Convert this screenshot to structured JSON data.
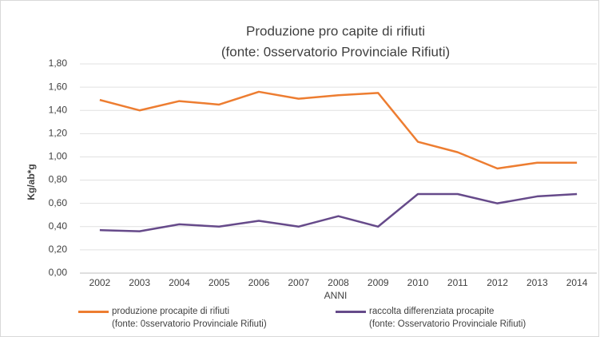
{
  "chart_data": {
    "type": "line",
    "title": "Produzione pro capite di rifiuti",
    "subtitle": "(fonte: 0sservatorio Provinciale Rifiuti)",
    "x_label": "ANNI",
    "y_label": "Kg/ab*g",
    "categories": [
      "2002",
      "2003",
      "2004",
      "2005",
      "2006",
      "2007",
      "2008",
      "2009",
      "2010",
      "2011",
      "2012",
      "2013",
      "2014"
    ],
    "series": [
      {
        "name": "produzione procapite di rifiuti\n(fonte: 0sservatorio Provinciale Rifiuti)",
        "color": "#ed7d31",
        "values": [
          1.49,
          1.4,
          1.48,
          1.45,
          1.56,
          1.5,
          1.53,
          1.55,
          1.13,
          1.04,
          0.9,
          0.95,
          0.95
        ]
      },
      {
        "name": "raccolta differenziata procapite\n(fonte: Osservatorio Provinciale Rifiuti)",
        "color": "#664a8a",
        "values": [
          0.37,
          0.36,
          0.42,
          0.4,
          0.45,
          0.4,
          0.49,
          0.4,
          0.68,
          0.68,
          0.6,
          0.66,
          0.68
        ]
      }
    ],
    "ylim": [
      0,
      1.8
    ],
    "yticks": [
      {
        "value": 0,
        "label": "0,00"
      },
      {
        "value": 0.2,
        "label": "0,20"
      },
      {
        "value": 0.4,
        "label": "0,40"
      },
      {
        "value": 0.6,
        "label": "0,60"
      },
      {
        "value": 0.8,
        "label": "0,80"
      },
      {
        "value": 1.0,
        "label": "1,00"
      },
      {
        "value": 1.2,
        "label": "1,20"
      },
      {
        "value": 1.4,
        "label": "1,40"
      },
      {
        "value": 1.6,
        "label": "1,60"
      },
      {
        "value": 1.8,
        "label": "1,80"
      }
    ],
    "grid": true,
    "legend": "bottom"
  }
}
